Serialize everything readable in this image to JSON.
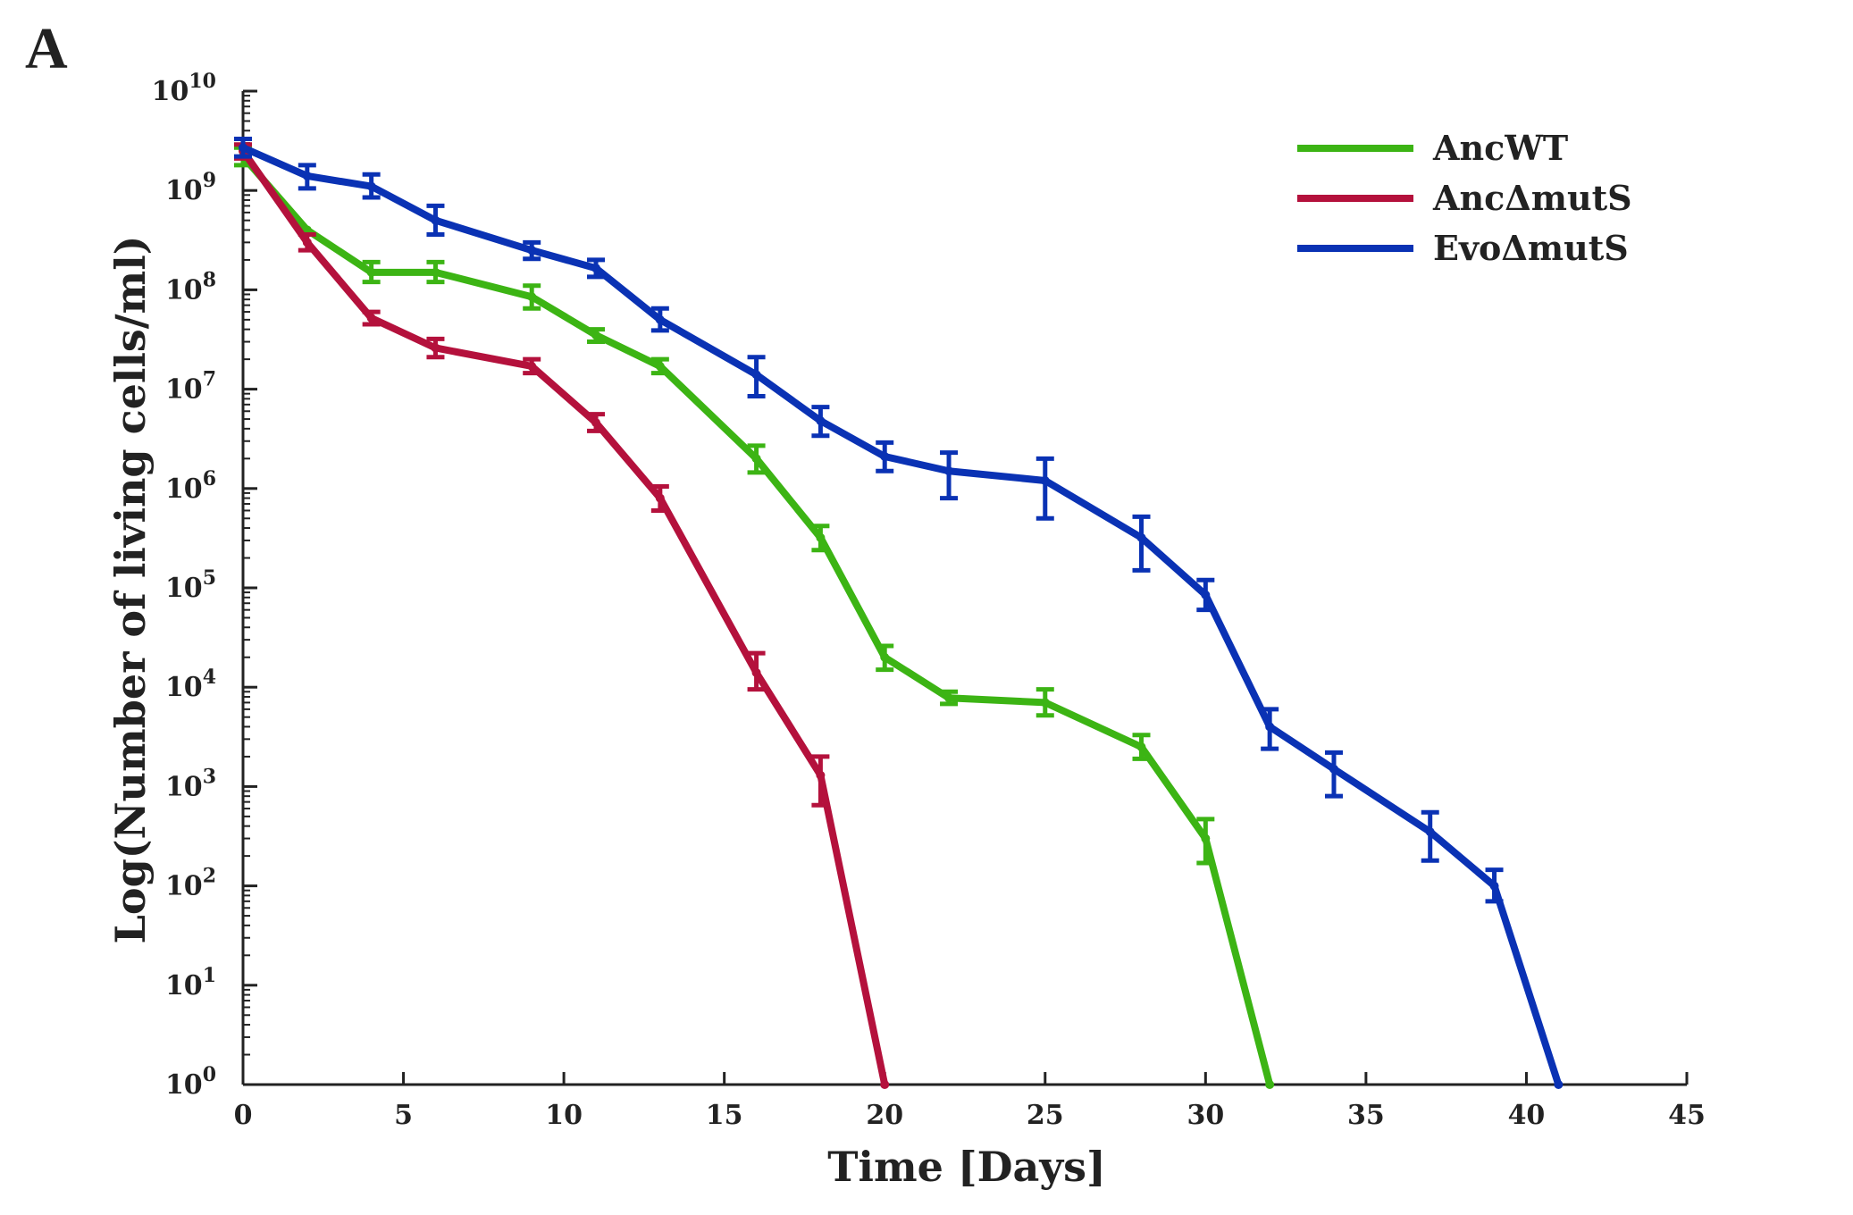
{
  "panel_label": "A",
  "chart_data": {
    "type": "line",
    "xlabel": "Time [Days]",
    "ylabel": "Log(Number of living cells/ml)",
    "xlim": [
      0,
      45
    ],
    "ylim_exponent": [
      0,
      10
    ],
    "yscale": "log",
    "grid": false,
    "legend_position": "top-right",
    "xticks": [
      "0",
      "5",
      "10",
      "15",
      "20",
      "25",
      "30",
      "35",
      "40",
      "45"
    ],
    "yticks": [
      {
        "base": "10",
        "exp": "0"
      },
      {
        "base": "10",
        "exp": "1"
      },
      {
        "base": "10",
        "exp": "2"
      },
      {
        "base": "10",
        "exp": "3"
      },
      {
        "base": "10",
        "exp": "4"
      },
      {
        "base": "10",
        "exp": "5"
      },
      {
        "base": "10",
        "exp": "6"
      },
      {
        "base": "10",
        "exp": "7"
      },
      {
        "base": "10",
        "exp": "8"
      },
      {
        "base": "10",
        "exp": "9"
      },
      {
        "base": "10",
        "exp": "10"
      }
    ],
    "series": [
      {
        "name": "AncWT",
        "color": "#3cb414",
        "points": [
          {
            "x": 0,
            "y": 2200000000.0,
            "err_lo": 1800000000.0,
            "err_hi": 2700000000.0
          },
          {
            "x": 2,
            "y": 400000000.0
          },
          {
            "x": 4,
            "y": 150000000.0,
            "err_lo": 120000000.0,
            "err_hi": 190000000.0
          },
          {
            "x": 6,
            "y": 150000000.0,
            "err_lo": 120000000.0,
            "err_hi": 190000000.0
          },
          {
            "x": 9,
            "y": 85000000.0,
            "err_lo": 65000000.0,
            "err_hi": 110000000.0
          },
          {
            "x": 11,
            "y": 35000000.0,
            "err_lo": 30000000.0,
            "err_hi": 40000000.0
          },
          {
            "x": 13,
            "y": 17000000.0,
            "err_lo": 14500000.0,
            "err_hi": 20000000.0
          },
          {
            "x": 16,
            "y": 2000000.0,
            "err_lo": 1450000.0,
            "err_hi": 2700000.0
          },
          {
            "x": 18,
            "y": 320000.0,
            "err_lo": 240000.0,
            "err_hi": 420000.0
          },
          {
            "x": 20,
            "y": 20000.0,
            "err_lo": 15000.0,
            "err_hi": 26000.0
          },
          {
            "x": 22,
            "y": 7800.0,
            "err_lo": 6800.0,
            "err_hi": 9000.0
          },
          {
            "x": 25,
            "y": 7000.0,
            "err_lo": 5200.0,
            "err_hi": 9500.0
          },
          {
            "x": 28,
            "y": 2500.0,
            "err_lo": 1900.0,
            "err_hi": 3300.0
          },
          {
            "x": 30,
            "y": 300.0,
            "err_lo": 170.0,
            "err_hi": 470.0
          },
          {
            "x": 32,
            "y": 1
          }
        ]
      },
      {
        "name": "AncΔmutS",
        "color": "#b4113c",
        "points": [
          {
            "x": 0,
            "y": 2500000000.0,
            "err_lo": 2100000000.0,
            "err_hi": 2900000000.0
          },
          {
            "x": 2,
            "y": 300000000.0,
            "err_lo": 250000000.0,
            "err_hi": 360000000.0
          },
          {
            "x": 4,
            "y": 52000000.0,
            "err_lo": 45000000.0,
            "err_hi": 60000000.0
          },
          {
            "x": 6,
            "y": 26000000.0,
            "err_lo": 21000000.0,
            "err_hi": 32000000.0
          },
          {
            "x": 9,
            "y": 17000000.0,
            "err_lo": 14500000.0,
            "err_hi": 20000000.0
          },
          {
            "x": 11,
            "y": 4600000.0,
            "err_lo": 3800000.0,
            "err_hi": 5600000.0
          },
          {
            "x": 13,
            "y": 800000.0,
            "err_lo": 600000.0,
            "err_hi": 1050000.0
          },
          {
            "x": 16,
            "y": 14000.0,
            "err_lo": 9500.0,
            "err_hi": 22000.0
          },
          {
            "x": 18,
            "y": 1300.0,
            "err_lo": 650.0,
            "err_hi": 2000.0
          },
          {
            "x": 20,
            "y": 1
          }
        ]
      },
      {
        "name": "EvoΔmutS",
        "color": "#0a32b4",
        "points": [
          {
            "x": 0,
            "y": 2700000000.0,
            "err_lo": 2200000000.0,
            "err_hi": 3300000000.0
          },
          {
            "x": 2,
            "y": 1400000000.0,
            "err_lo": 1050000000.0,
            "err_hi": 1800000000.0
          },
          {
            "x": 4,
            "y": 1100000000.0,
            "err_lo": 850000000.0,
            "err_hi": 1450000000.0
          },
          {
            "x": 6,
            "y": 500000000.0,
            "err_lo": 360000000.0,
            "err_hi": 700000000.0
          },
          {
            "x": 9,
            "y": 250000000.0,
            "err_lo": 205000000.0,
            "err_hi": 300000000.0
          },
          {
            "x": 11,
            "y": 165000000.0,
            "err_lo": 135000000.0,
            "err_hi": 200000000.0
          },
          {
            "x": 13,
            "y": 50000000.0,
            "err_lo": 39000000.0,
            "err_hi": 65000000.0
          },
          {
            "x": 16,
            "y": 14000000.0,
            "err_lo": 8500000.0,
            "err_hi": 21000000.0
          },
          {
            "x": 18,
            "y": 4800000.0,
            "err_lo": 3400000.0,
            "err_hi": 6600000.0
          },
          {
            "x": 20,
            "y": 2100000.0,
            "err_lo": 1500000.0,
            "err_hi": 2900000.0
          },
          {
            "x": 22,
            "y": 1500000.0,
            "err_lo": 800000.0,
            "err_hi": 2300000.0
          },
          {
            "x": 25,
            "y": 1200000.0,
            "err_lo": 500000.0,
            "err_hi": 2000000.0
          },
          {
            "x": 28,
            "y": 320000.0,
            "err_lo": 150000.0,
            "err_hi": 520000.0
          },
          {
            "x": 30,
            "y": 85000.0,
            "err_lo": 60000.0,
            "err_hi": 120000.0
          },
          {
            "x": 32,
            "y": 4000.0,
            "err_lo": 2400.0,
            "err_hi": 6000.0
          },
          {
            "x": 34,
            "y": 1500.0,
            "err_lo": 800.0,
            "err_hi": 2200.0
          },
          {
            "x": 37,
            "y": 350.0,
            "err_lo": 180.0,
            "err_hi": 550.0
          },
          {
            "x": 39,
            "y": 100.0,
            "err_lo": 70.0,
            "err_hi": 145.0
          },
          {
            "x": 41,
            "y": 1
          }
        ]
      }
    ]
  }
}
